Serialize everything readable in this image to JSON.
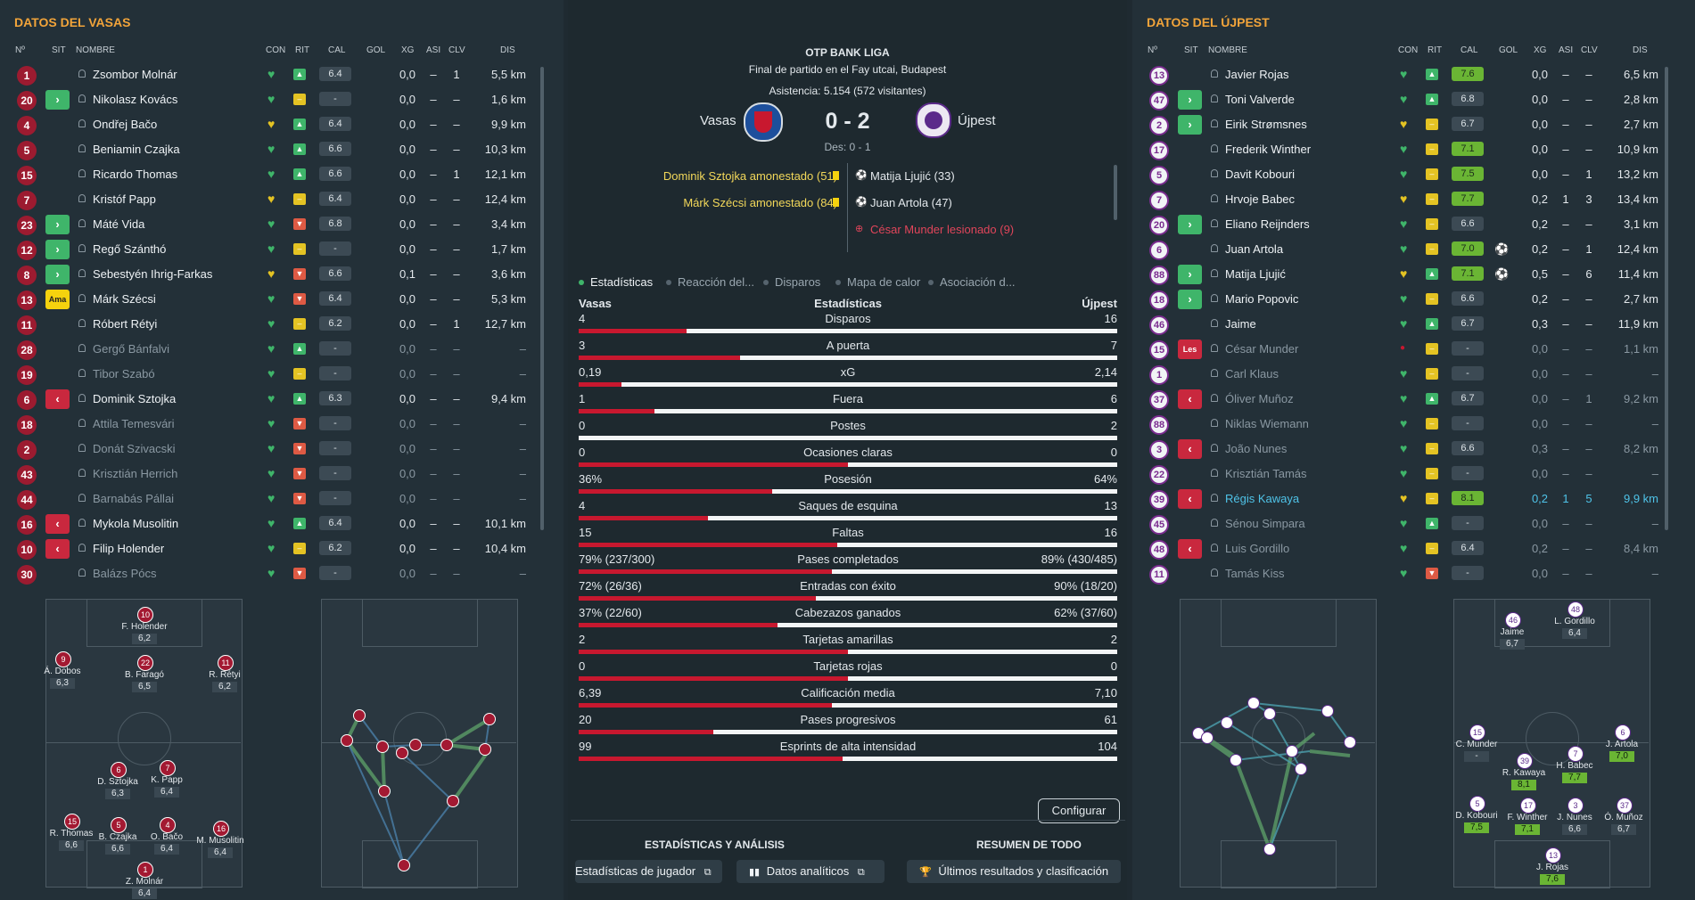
{
  "left": {
    "title": "DATOS DEL VASAS",
    "headers": {
      "no": "Nº",
      "sit": "SIT",
      "nombre": "NOMBRE",
      "con": "CON",
      "rit": "RIT",
      "cal": "CAL",
      "gol": "GOL",
      "xg": "XG",
      "asi": "ASI",
      "clv": "CLV",
      "dis": "DIS"
    },
    "players": [
      {
        "no": "1",
        "sit": "",
        "name": "Zsombor Molnár",
        "rit": "up",
        "cal": "6.4",
        "xg": "0,0",
        "asi": "–",
        "clv": "1",
        "dis": "5,5 km",
        "bench": false
      },
      {
        "no": "20",
        "sit": "sub",
        "name": "Nikolasz Kovács",
        "rit": "mid",
        "cal": "-",
        "xg": "0,0",
        "asi": "–",
        "clv": "–",
        "dis": "1,6 km",
        "bench": false
      },
      {
        "no": "4",
        "sit": "",
        "name": "Ondřej Bačo",
        "rit": "up",
        "cal": "6.4",
        "xg": "0,0",
        "asi": "–",
        "clv": "–",
        "dis": "9,9 km",
        "bench": false
      },
      {
        "no": "5",
        "sit": "",
        "name": "Beniamin Czajka",
        "rit": "up",
        "cal": "6.6",
        "xg": "0,0",
        "asi": "–",
        "clv": "–",
        "dis": "10,3 km",
        "bench": false
      },
      {
        "no": "15",
        "sit": "",
        "name": "Ricardo Thomas",
        "rit": "up",
        "cal": "6.6",
        "xg": "0,0",
        "asi": "–",
        "clv": "1",
        "dis": "12,1 km",
        "bench": false
      },
      {
        "no": "7",
        "sit": "",
        "name": "Kristóf Papp",
        "rit": "mid",
        "cal": "6.4",
        "xg": "0,0",
        "asi": "–",
        "clv": "–",
        "dis": "12,4 km",
        "bench": false
      },
      {
        "no": "23",
        "sit": "sub",
        "name": "Máté Vida",
        "rit": "dn",
        "cal": "6.8",
        "xg": "0,0",
        "asi": "–",
        "clv": "–",
        "dis": "3,4 km",
        "bench": false
      },
      {
        "no": "12",
        "sit": "sub",
        "name": "Regő Szánthó",
        "rit": "mid",
        "cal": "-",
        "xg": "0,0",
        "asi": "–",
        "clv": "–",
        "dis": "1,7 km",
        "bench": false
      },
      {
        "no": "8",
        "sit": "sub",
        "name": "Sebestyén Ihrig-Farkas",
        "rit": "dn",
        "cal": "6.6",
        "xg": "0,1",
        "asi": "–",
        "clv": "–",
        "dis": "3,6 km",
        "bench": false
      },
      {
        "no": "13",
        "sit": "ama",
        "name": "Márk Szécsi",
        "rit": "dn",
        "cal": "6.4",
        "xg": "0,0",
        "asi": "–",
        "clv": "–",
        "dis": "5,3 km",
        "bench": false
      },
      {
        "no": "11",
        "sit": "",
        "name": "Róbert Rétyi",
        "rit": "mid",
        "cal": "6.2",
        "xg": "0,0",
        "asi": "–",
        "clv": "1",
        "dis": "12,7 km",
        "bench": false
      },
      {
        "no": "28",
        "sit": "",
        "name": "Gergő Bánfalvi",
        "rit": "up",
        "cal": "-",
        "xg": "0,0",
        "asi": "–",
        "clv": "–",
        "dis": "–",
        "bench": true
      },
      {
        "no": "19",
        "sit": "",
        "name": "Tibor Szabó",
        "rit": "mid",
        "cal": "-",
        "xg": "0,0",
        "asi": "–",
        "clv": "–",
        "dis": "–",
        "bench": true
      },
      {
        "no": "6",
        "sit": "off",
        "name": "Dominik Sztojka",
        "rit": "up",
        "cal": "6.3",
        "xg": "0,0",
        "asi": "–",
        "clv": "–",
        "dis": "9,4 km",
        "bench": false
      },
      {
        "no": "18",
        "sit": "",
        "name": "Attila Temesvári",
        "rit": "dn",
        "cal": "-",
        "xg": "0,0",
        "asi": "–",
        "clv": "–",
        "dis": "–",
        "bench": true
      },
      {
        "no": "2",
        "sit": "",
        "name": "Donát Szivacski",
        "rit": "dn",
        "cal": "-",
        "xg": "0,0",
        "asi": "–",
        "clv": "–",
        "dis": "–",
        "bench": true
      },
      {
        "no": "43",
        "sit": "",
        "name": "Krisztián Herrich",
        "rit": "dn",
        "cal": "-",
        "xg": "0,0",
        "asi": "–",
        "clv": "–",
        "dis": "–",
        "bench": true
      },
      {
        "no": "44",
        "sit": "",
        "name": "Barnabás Pállai",
        "rit": "dn",
        "cal": "-",
        "xg": "0,0",
        "asi": "–",
        "clv": "–",
        "dis": "–",
        "bench": true
      },
      {
        "no": "16",
        "sit": "off",
        "name": "Mykola Musolitin",
        "rit": "up",
        "cal": "6.4",
        "xg": "0,0",
        "asi": "–",
        "clv": "–",
        "dis": "10,1 km",
        "bench": false
      },
      {
        "no": "10",
        "sit": "off",
        "name": "Filip Holender",
        "rit": "mid",
        "cal": "6.2",
        "xg": "0,0",
        "asi": "–",
        "clv": "–",
        "dis": "10,4 km",
        "bench": false
      },
      {
        "no": "30",
        "sit": "",
        "name": "Balázs Pócs",
        "rit": "dn",
        "cal": "-",
        "xg": "0,0",
        "asi": "–",
        "clv": "–",
        "dis": "–",
        "bench": true
      }
    ],
    "pitch_players": [
      {
        "no": "10",
        "name": "F. Holender",
        "rat": "6,2"
      },
      {
        "no": "9",
        "name": "Á. Dobos",
        "rat": "6,3"
      },
      {
        "no": "22",
        "name": "B. Faragó",
        "rat": "6,5"
      },
      {
        "no": "11",
        "name": "R. Rétyi",
        "rat": "6,2"
      },
      {
        "no": "6",
        "name": "D. Sztojka",
        "rat": "6,3"
      },
      {
        "no": "7",
        "name": "K. Papp",
        "rat": "6,4"
      },
      {
        "no": "15",
        "name": "R. Thomas",
        "rat": "6,6"
      },
      {
        "no": "5",
        "name": "B. Czajka",
        "rat": "6,6"
      },
      {
        "no": "4",
        "name": "O. Bačo",
        "rat": "6,4"
      },
      {
        "no": "16",
        "name": "M. Musolitin",
        "rat": "6,4"
      },
      {
        "no": "1",
        "name": "Z. Molnár",
        "rat": "6,4"
      }
    ]
  },
  "right": {
    "title": "DATOS DEL ÚJPEST",
    "players": [
      {
        "no": "13",
        "sit": "",
        "name": "Javier Rojas",
        "rit": "up",
        "cal": "7.6",
        "calgood": true,
        "gol": "",
        "xg": "0,0",
        "asi": "–",
        "clv": "–",
        "dis": "6,5 km",
        "bench": false
      },
      {
        "no": "47",
        "sit": "sub",
        "name": "Toni Valverde",
        "rit": "up",
        "cal": "6.8",
        "calgood": false,
        "gol": "",
        "xg": "0,0",
        "asi": "–",
        "clv": "–",
        "dis": "2,8 km",
        "bench": false
      },
      {
        "no": "2",
        "sit": "sub",
        "name": "Eirik Strømsnes",
        "rit": "mid",
        "cal": "6.7",
        "calgood": false,
        "gol": "",
        "xg": "0,0",
        "asi": "–",
        "clv": "–",
        "dis": "2,7 km",
        "bench": false
      },
      {
        "no": "17",
        "sit": "",
        "name": "Frederik Winther",
        "rit": "mid",
        "cal": "7.1",
        "calgood": true,
        "gol": "",
        "xg": "0,0",
        "asi": "–",
        "clv": "–",
        "dis": "10,9 km",
        "bench": false
      },
      {
        "no": "5",
        "sit": "",
        "name": "Davit Kobouri",
        "rit": "mid",
        "cal": "7.5",
        "calgood": true,
        "gol": "",
        "xg": "0,0",
        "asi": "–",
        "clv": "1",
        "dis": "13,2 km",
        "bench": false
      },
      {
        "no": "7",
        "sit": "",
        "name": "Hrvoje Babec",
        "rit": "mid",
        "cal": "7.7",
        "calgood": true,
        "gol": "",
        "xg": "0,2",
        "asi": "1",
        "clv": "3",
        "dis": "13,4 km",
        "bench": false
      },
      {
        "no": "20",
        "sit": "sub",
        "name": "Eliano Reijnders",
        "rit": "mid",
        "cal": "6.6",
        "calgood": false,
        "gol": "",
        "xg": "0,2",
        "asi": "–",
        "clv": "–",
        "dis": "3,1 km",
        "bench": false
      },
      {
        "no": "6",
        "sit": "",
        "name": "Juan Artola",
        "rit": "mid",
        "cal": "7.0",
        "calgood": true,
        "gol": "⚽",
        "xg": "0,2",
        "asi": "–",
        "clv": "1",
        "dis": "12,4 km",
        "bench": false
      },
      {
        "no": "88",
        "sit": "sub",
        "name": "Matija Ljujić",
        "rit": "up",
        "cal": "7.1",
        "calgood": true,
        "gol": "⚽",
        "xg": "0,5",
        "asi": "–",
        "clv": "6",
        "dis": "11,4 km",
        "bench": false
      },
      {
        "no": "18",
        "sit": "sub",
        "name": "Mario Popovic",
        "rit": "mid",
        "cal": "6.6",
        "calgood": false,
        "gol": "",
        "xg": "0,2",
        "asi": "–",
        "clv": "–",
        "dis": "2,7 km",
        "bench": false
      },
      {
        "no": "46",
        "sit": "",
        "name": "Jaime",
        "rit": "up",
        "cal": "6.7",
        "calgood": false,
        "gol": "",
        "xg": "0,3",
        "asi": "–",
        "clv": "–",
        "dis": "11,9 km",
        "bench": false
      },
      {
        "no": "15",
        "sit": "les",
        "name": "César Munder",
        "rit": "mid",
        "cal": "-",
        "calgood": false,
        "gol": "",
        "xg": "0,0",
        "asi": "–",
        "clv": "–",
        "dis": "1,1 km",
        "bench": true
      },
      {
        "no": "1",
        "sit": "",
        "name": "Carl Klaus",
        "rit": "mid",
        "cal": "-",
        "calgood": false,
        "gol": "",
        "xg": "0,0",
        "asi": "–",
        "clv": "–",
        "dis": "–",
        "bench": true
      },
      {
        "no": "37",
        "sit": "off",
        "name": "Óliver Muñoz",
        "rit": "up",
        "cal": "6.7",
        "calgood": false,
        "gol": "",
        "xg": "0,0",
        "asi": "–",
        "clv": "1",
        "dis": "9,2 km",
        "bench": true
      },
      {
        "no": "88",
        "sit": "",
        "name": "Niklas Wiemann",
        "rit": "mid",
        "cal": "-",
        "calgood": false,
        "gol": "",
        "xg": "0,0",
        "asi": "–",
        "clv": "–",
        "dis": "–",
        "bench": true
      },
      {
        "no": "3",
        "sit": "off",
        "name": "João Nunes",
        "rit": "mid",
        "cal": "6.6",
        "calgood": false,
        "gol": "",
        "xg": "0,3",
        "asi": "–",
        "clv": "–",
        "dis": "8,2 km",
        "bench": true
      },
      {
        "no": "22",
        "sit": "",
        "name": "Krisztián Tamás",
        "rit": "mid",
        "cal": "-",
        "calgood": false,
        "gol": "",
        "xg": "0,0",
        "asi": "–",
        "clv": "–",
        "dis": "–",
        "bench": true
      },
      {
        "no": "39",
        "sit": "off",
        "name": "Régis Kawaya",
        "rit": "mid",
        "cal": "8.1",
        "calgood": true,
        "gol": "",
        "xg": "0,2",
        "asi": "1",
        "clv": "5",
        "dis": "9,9 km",
        "bench": false,
        "hl": true
      },
      {
        "no": "45",
        "sit": "",
        "name": "Sénou Simpara",
        "rit": "up",
        "cal": "-",
        "calgood": false,
        "gol": "",
        "xg": "0,0",
        "asi": "–",
        "clv": "–",
        "dis": "–",
        "bench": true
      },
      {
        "no": "48",
        "sit": "off",
        "name": "Luis Gordillo",
        "rit": "mid",
        "cal": "6.4",
        "calgood": false,
        "gol": "",
        "xg": "0,2",
        "asi": "–",
        "clv": "–",
        "dis": "8,4 km",
        "bench": true
      },
      {
        "no": "11",
        "sit": "",
        "name": "Tamás Kiss",
        "rit": "dn",
        "cal": "-",
        "calgood": false,
        "gol": "",
        "xg": "0,0",
        "asi": "–",
        "clv": "–",
        "dis": "–",
        "bench": true
      }
    ],
    "pitch_players": [
      {
        "no": "46",
        "name": "Jaime",
        "rat": "6,7",
        "good": false
      },
      {
        "no": "48",
        "name": "L. Gordillo",
        "rat": "6,4",
        "good": false
      },
      {
        "no": "15",
        "name": "C. Munder",
        "rat": "-",
        "good": false
      },
      {
        "no": "39",
        "name": "R. Kawaya",
        "rat": "8,1",
        "good": true
      },
      {
        "no": "7",
        "name": "H. Babec",
        "rat": "7,7",
        "good": true
      },
      {
        "no": "6",
        "name": "J. Artola",
        "rat": "7,0",
        "good": true
      },
      {
        "no": "5",
        "name": "D. Kobouri",
        "rat": "7,5",
        "good": true
      },
      {
        "no": "17",
        "name": "F. Winther",
        "rat": "7,1",
        "good": true
      },
      {
        "no": "3",
        "name": "J. Nunes",
        "rat": "6,6",
        "good": false
      },
      {
        "no": "37",
        "name": "Ó. Muñoz",
        "rat": "6,7",
        "good": false
      },
      {
        "no": "13",
        "name": "J. Rojas",
        "rat": "7,6",
        "good": true
      }
    ]
  },
  "match": {
    "league": "OTP BANK LIGA",
    "venue": "Final de partido en el Fay utcai, Budapest",
    "attendance": "Asistencia: 5.154 (572 visitantes)",
    "home": "Vasas",
    "away": "Újpest",
    "score": "0 - 2",
    "halftime": "Des: 0 - 1",
    "events_home": [
      "Dominik Sztojka amonestado (51)",
      "Márk Szécsi amonestado (84)"
    ],
    "events_away": [
      "Matija Ljujić (33)",
      "Juan Artola (47)",
      "César Munder lesionado (9)"
    ]
  },
  "tabs": [
    "Estadísticas",
    "Reacción del...",
    "Disparos",
    "Mapa de calor",
    "Asociación d..."
  ],
  "stats_header": {
    "home": "Vasas",
    "title": "Estadísticas",
    "away": "Újpest"
  },
  "stats": [
    {
      "label": "Disparos",
      "home": "4",
      "away": "16",
      "share": 0.2
    },
    {
      "label": "A puerta",
      "home": "3",
      "away": "7",
      "share": 0.3
    },
    {
      "label": "xG",
      "home": "0,19",
      "away": "2,14",
      "share": 0.08
    },
    {
      "label": "Fuera",
      "home": "1",
      "away": "6",
      "share": 0.14
    },
    {
      "label": "Postes",
      "home": "0",
      "away": "2",
      "share": 0.0
    },
    {
      "label": "Ocasiones claras",
      "home": "0",
      "away": "0",
      "share": 0.5
    },
    {
      "label": "Posesión",
      "home": "36%",
      "away": "64%",
      "share": 0.36
    },
    {
      "label": "Saques de esquina",
      "home": "4",
      "away": "13",
      "share": 0.24
    },
    {
      "label": "Faltas",
      "home": "15",
      "away": "16",
      "share": 0.48
    },
    {
      "label": "Pases completados",
      "home": "79% (237/300)",
      "away": "89% (430/485)",
      "share": 0.47
    },
    {
      "label": "Entradas con éxito",
      "home": "72% (26/36)",
      "away": "90% (18/20)",
      "share": 0.44
    },
    {
      "label": "Cabezazos ganados",
      "home": "37% (22/60)",
      "away": "62% (37/60)",
      "share": 0.37
    },
    {
      "label": "Tarjetas amarillas",
      "home": "2",
      "away": "2",
      "share": 0.5
    },
    {
      "label": "Tarjetas rojas",
      "home": "0",
      "away": "0",
      "share": 0.5
    },
    {
      "label": "Calificación media",
      "home": "6,39",
      "away": "7,10",
      "share": 0.47
    },
    {
      "label": "Pases progresivos",
      "home": "20",
      "away": "61",
      "share": 0.25
    },
    {
      "label": "Esprints de alta intensidad",
      "home": "99",
      "away": "104",
      "share": 0.49
    }
  ],
  "buttons": {
    "configurar": "Configurar",
    "section_left": "ESTADÍSTICAS Y ANÁLISIS",
    "section_right": "RESUMEN DE TODO",
    "player_stats": "Estadísticas de jugador",
    "analytics": "Datos analíticos",
    "results": "Últimos resultados y clasificación"
  },
  "colors": {
    "accent": "#f2a43a",
    "home_red": "#c8182f",
    "away_purple": "#5b2a8a",
    "positive": "#3fb56a"
  }
}
